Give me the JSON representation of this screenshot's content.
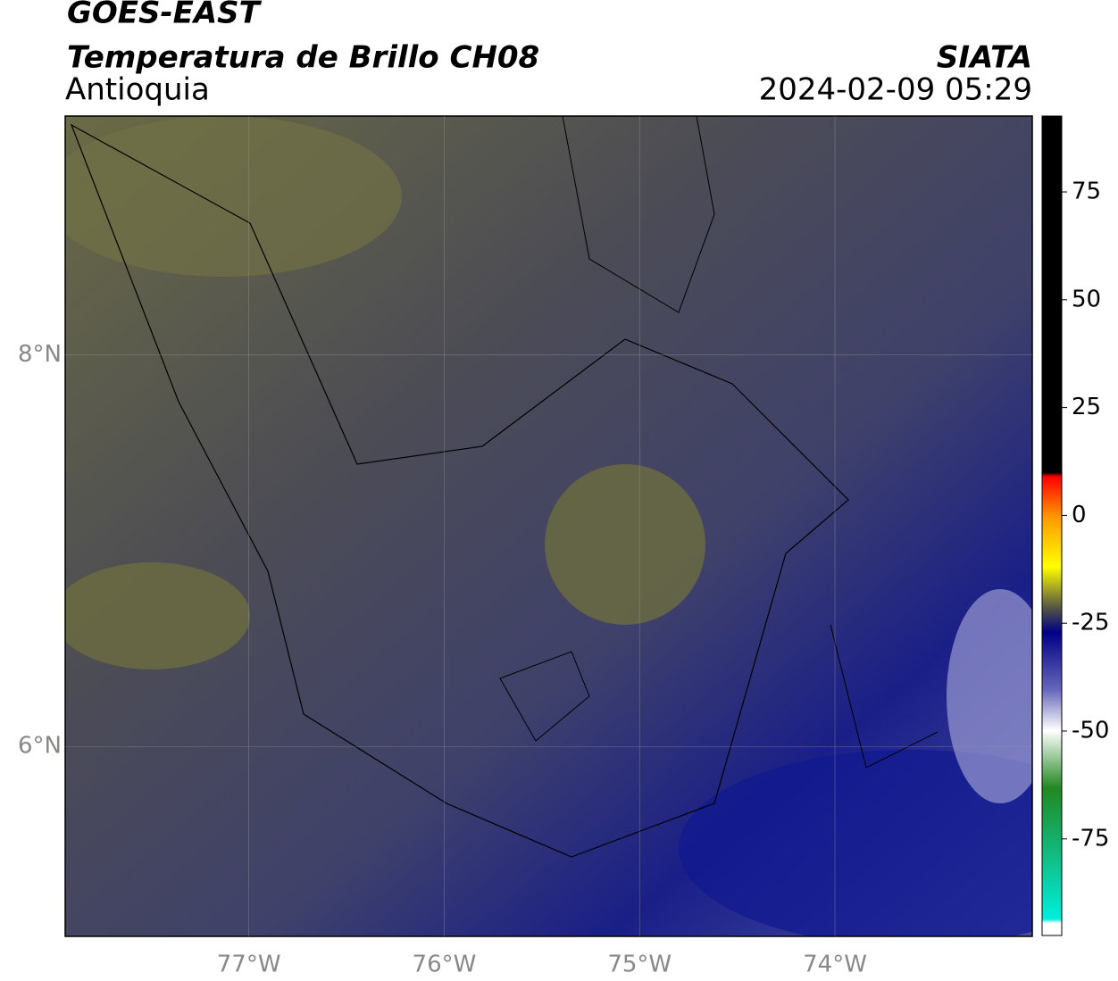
{
  "header": {
    "title": "GOES-EAST",
    "subtitle": "Temperatura de Brillo CH08",
    "region": "Antioquia",
    "source": "SIATA",
    "datetime": "2024-02-09 05:29"
  },
  "map": {
    "xlim": [
      -77.94,
      -72.99
    ],
    "ylim": [
      5.03,
      9.22
    ],
    "xticks": [
      {
        "value": -77,
        "label": "77°W"
      },
      {
        "value": -76,
        "label": "76°W"
      },
      {
        "value": -75,
        "label": "75°W"
      },
      {
        "value": -74,
        "label": "74°W"
      }
    ],
    "yticks": [
      {
        "value": 6,
        "label": "6°N"
      },
      {
        "value": 8,
        "label": "8°N"
      }
    ],
    "grid": true
  },
  "colorbar": {
    "limits": [
      -97.4,
      92.6
    ],
    "ticks": [
      75,
      50,
      25,
      0,
      -25,
      -50,
      -75
    ]
  }
}
